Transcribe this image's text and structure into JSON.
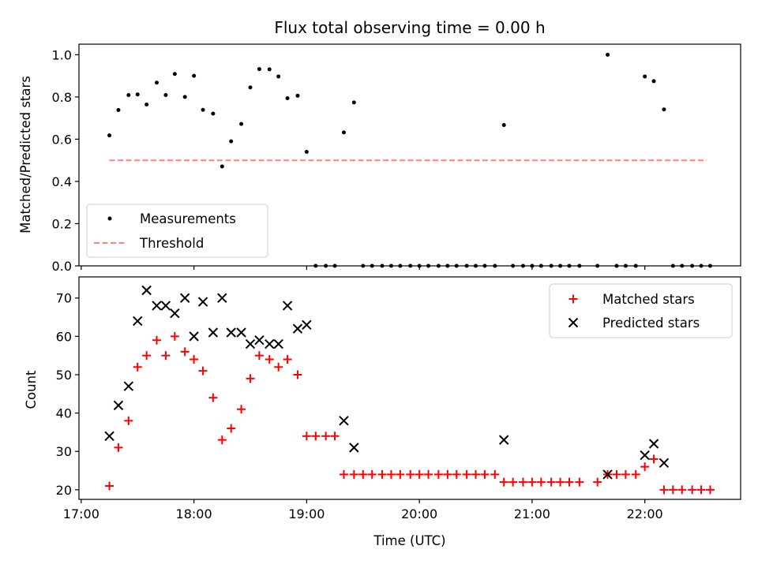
{
  "chart_data": {
    "type": "scatter",
    "title": "Flux total observing time = 0.00 h",
    "xlabel": "Time (UTC)",
    "xlim": [
      16.98,
      22.85
    ],
    "xticks": [
      {
        "value": 17,
        "label": "17:00"
      },
      {
        "value": 18,
        "label": "18:00"
      },
      {
        "value": 19,
        "label": "19:00"
      },
      {
        "value": 20,
        "label": "20:00"
      },
      {
        "value": 21,
        "label": "21:00"
      },
      {
        "value": 22,
        "label": "22:00"
      }
    ],
    "top": {
      "ylabel": "Matched/Predicted stars",
      "ylim": [
        0,
        1.05
      ],
      "yticks": [
        {
          "value": 0.0,
          "label": "0.0"
        },
        {
          "value": 0.2,
          "label": "0.2"
        },
        {
          "value": 0.4,
          "label": "0.4"
        },
        {
          "value": 0.6,
          "label": "0.6"
        },
        {
          "value": 0.8,
          "label": "0.8"
        },
        {
          "value": 1.0,
          "label": "1.0"
        }
      ],
      "legend_position": "lower-left",
      "threshold": {
        "name": "Threshold",
        "value": 0.5,
        "x_start": 17.25,
        "x_end": 22.55,
        "color": "#ff7f7f"
      },
      "measurements": {
        "name": "Measurements",
        "color": "#000000",
        "points": [
          [
            17.25,
            0.618
          ],
          [
            17.33,
            0.738
          ],
          [
            17.42,
            0.809
          ],
          [
            17.5,
            0.812
          ],
          [
            17.58,
            0.764
          ],
          [
            17.67,
            0.868
          ],
          [
            17.75,
            0.809
          ],
          [
            17.83,
            0.909
          ],
          [
            17.92,
            0.8
          ],
          [
            18.0,
            0.9
          ],
          [
            18.08,
            0.739
          ],
          [
            18.17,
            0.721
          ],
          [
            18.25,
            0.471
          ],
          [
            18.33,
            0.59
          ],
          [
            18.42,
            0.672
          ],
          [
            18.5,
            0.845
          ],
          [
            18.58,
            0.932
          ],
          [
            18.67,
            0.931
          ],
          [
            18.75,
            0.897
          ],
          [
            18.83,
            0.794
          ],
          [
            18.92,
            0.806
          ],
          [
            19.0,
            0.54
          ],
          [
            19.08,
            0.0
          ],
          [
            19.17,
            0.0
          ],
          [
            19.25,
            0.0
          ],
          [
            19.33,
            0.632
          ],
          [
            19.42,
            0.774
          ],
          [
            19.5,
            0.0
          ],
          [
            19.58,
            0.0
          ],
          [
            19.67,
            0.0
          ],
          [
            19.75,
            0.0
          ],
          [
            19.83,
            0.0
          ],
          [
            19.92,
            0.0
          ],
          [
            20.0,
            0.0
          ],
          [
            20.08,
            0.0
          ],
          [
            20.17,
            0.0
          ],
          [
            20.25,
            0.0
          ],
          [
            20.33,
            0.0
          ],
          [
            20.42,
            0.0
          ],
          [
            20.5,
            0.0
          ],
          [
            20.58,
            0.0
          ],
          [
            20.67,
            0.0
          ],
          [
            20.75,
            0.667
          ],
          [
            20.83,
            0.0
          ],
          [
            20.92,
            0.0
          ],
          [
            21.0,
            0.0
          ],
          [
            21.08,
            0.0
          ],
          [
            21.17,
            0.0
          ],
          [
            21.25,
            0.0
          ],
          [
            21.33,
            0.0
          ],
          [
            21.42,
            0.0
          ],
          [
            21.58,
            0.0
          ],
          [
            21.67,
            1.0
          ],
          [
            21.75,
            0.0
          ],
          [
            21.83,
            0.0
          ],
          [
            21.92,
            0.0
          ],
          [
            22.0,
            0.897
          ],
          [
            22.08,
            0.875
          ],
          [
            22.17,
            0.741
          ],
          [
            22.25,
            0.0
          ],
          [
            22.33,
            0.0
          ],
          [
            22.42,
            0.0
          ],
          [
            22.5,
            0.0
          ],
          [
            22.58,
            0.0
          ]
        ]
      }
    },
    "bottom": {
      "ylabel": "Count",
      "ylim": [
        17.5,
        75.5
      ],
      "yticks": [
        {
          "value": 20,
          "label": "20"
        },
        {
          "value": 30,
          "label": "30"
        },
        {
          "value": 40,
          "label": "40"
        },
        {
          "value": 50,
          "label": "50"
        },
        {
          "value": 60,
          "label": "60"
        },
        {
          "value": 70,
          "label": "70"
        }
      ],
      "legend_position": "top-right",
      "series": [
        {
          "name": "Matched stars",
          "marker": "+",
          "color": "#ff0000",
          "points": [
            [
              17.25,
              21
            ],
            [
              17.33,
              31
            ],
            [
              17.42,
              38
            ],
            [
              17.5,
              52
            ],
            [
              17.58,
              55
            ],
            [
              17.67,
              59
            ],
            [
              17.75,
              55
            ],
            [
              17.83,
              60
            ],
            [
              17.92,
              56
            ],
            [
              18.0,
              54
            ],
            [
              18.08,
              51
            ],
            [
              18.17,
              44
            ],
            [
              18.25,
              33
            ],
            [
              18.33,
              36
            ],
            [
              18.42,
              41
            ],
            [
              18.5,
              49
            ],
            [
              18.58,
              55
            ],
            [
              18.67,
              54
            ],
            [
              18.75,
              52
            ],
            [
              18.83,
              54
            ],
            [
              18.92,
              50
            ],
            [
              19.0,
              34
            ],
            [
              19.08,
              34
            ],
            [
              19.17,
              34
            ],
            [
              19.25,
              34
            ],
            [
              19.33,
              24
            ],
            [
              19.42,
              24
            ],
            [
              19.5,
              24
            ],
            [
              19.58,
              24
            ],
            [
              19.67,
              24
            ],
            [
              19.75,
              24
            ],
            [
              19.83,
              24
            ],
            [
              19.92,
              24
            ],
            [
              20.0,
              24
            ],
            [
              20.08,
              24
            ],
            [
              20.17,
              24
            ],
            [
              20.25,
              24
            ],
            [
              20.33,
              24
            ],
            [
              20.42,
              24
            ],
            [
              20.5,
              24
            ],
            [
              20.58,
              24
            ],
            [
              20.67,
              24
            ],
            [
              20.75,
              22
            ],
            [
              20.83,
              22
            ],
            [
              20.92,
              22
            ],
            [
              21.0,
              22
            ],
            [
              21.08,
              22
            ],
            [
              21.17,
              22
            ],
            [
              21.25,
              22
            ],
            [
              21.33,
              22
            ],
            [
              21.42,
              22
            ],
            [
              21.58,
              22
            ],
            [
              21.67,
              24
            ],
            [
              21.75,
              24
            ],
            [
              21.83,
              24
            ],
            [
              21.92,
              24
            ],
            [
              22.0,
              26
            ],
            [
              22.08,
              28
            ],
            [
              22.17,
              20
            ],
            [
              22.25,
              20
            ],
            [
              22.33,
              20
            ],
            [
              22.42,
              20
            ],
            [
              22.5,
              20
            ],
            [
              22.58,
              20
            ]
          ]
        },
        {
          "name": "Predicted stars",
          "marker": "x",
          "color": "#000000",
          "points": [
            [
              17.25,
              34
            ],
            [
              17.33,
              42
            ],
            [
              17.42,
              47
            ],
            [
              17.5,
              64
            ],
            [
              17.58,
              72
            ],
            [
              17.67,
              68
            ],
            [
              17.75,
              68
            ],
            [
              17.83,
              66
            ],
            [
              17.92,
              70
            ],
            [
              18.0,
              60
            ],
            [
              18.08,
              69
            ],
            [
              18.17,
              61
            ],
            [
              18.25,
              70
            ],
            [
              18.33,
              61
            ],
            [
              18.42,
              61
            ],
            [
              18.5,
              58
            ],
            [
              18.58,
              59
            ],
            [
              18.67,
              58
            ],
            [
              18.75,
              58
            ],
            [
              18.83,
              68
            ],
            [
              18.92,
              62
            ],
            [
              19.0,
              63
            ],
            [
              19.33,
              38
            ],
            [
              19.42,
              31
            ],
            [
              20.75,
              33
            ],
            [
              21.67,
              24
            ],
            [
              22.0,
              29
            ],
            [
              22.08,
              32
            ],
            [
              22.17,
              27
            ]
          ]
        }
      ]
    }
  }
}
